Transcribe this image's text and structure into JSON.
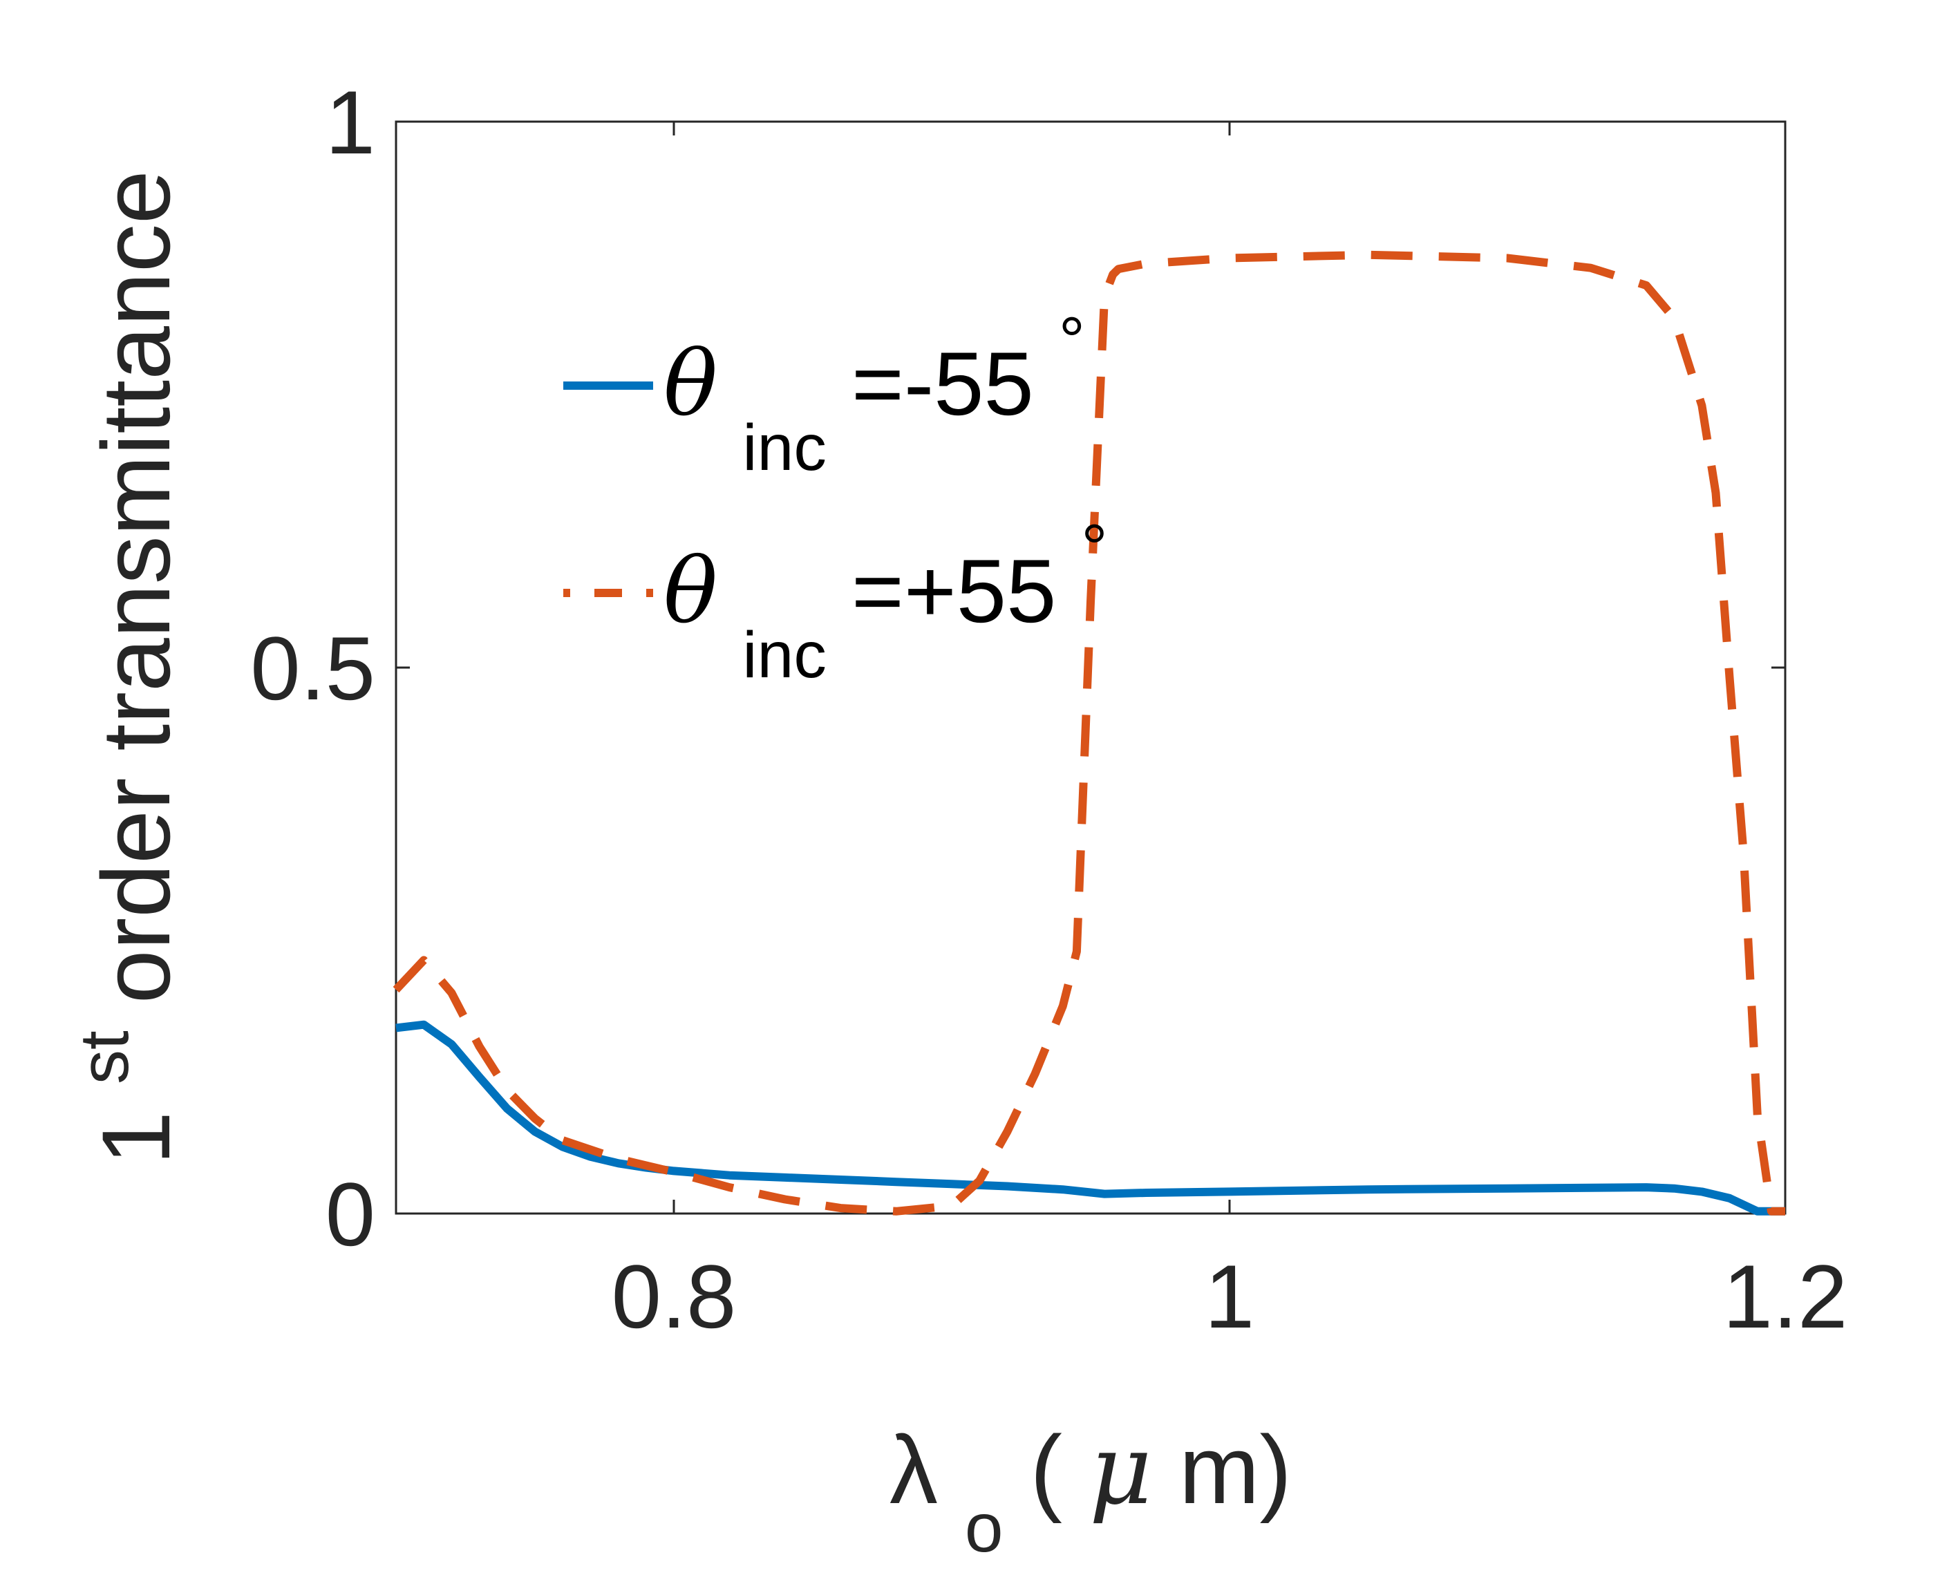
{
  "chart_data": {
    "type": "line",
    "xlabel": {
      "symbol": "λ",
      "sub": "o",
      "unit_open": " (",
      "unit_mu": "μ",
      "unit_rest": "m)"
    },
    "ylabel": {
      "main": "1",
      "sup": "st",
      "rest": " order transmittance"
    },
    "xlim": [
      0.7,
      1.2
    ],
    "ylim": [
      0,
      1
    ],
    "x_ticks": [
      0.8,
      1,
      1.2
    ],
    "x_tick_labels": [
      "0.8",
      "1",
      "1.2"
    ],
    "y_ticks": [
      0,
      0.5,
      1
    ],
    "y_tick_labels": [
      "0",
      "0.5",
      "1"
    ],
    "grid": false,
    "legend_position": "upper-left-inside",
    "series": [
      {
        "legend": {
          "theta": "θ",
          "sub": "inc",
          "rest": "=-55",
          "deg": "°"
        },
        "color": "#0072BD",
        "style": "solid",
        "x": [
          0.7,
          0.71,
          0.72,
          0.73,
          0.74,
          0.75,
          0.76,
          0.77,
          0.78,
          0.79,
          0.8,
          0.82,
          0.84,
          0.86,
          0.88,
          0.9,
          0.92,
          0.94,
          0.955,
          0.97,
          1.0,
          1.05,
          1.1,
          1.15,
          1.16,
          1.17,
          1.18,
          1.19,
          1.2
        ],
        "y": [
          0.17,
          0.173,
          0.155,
          0.125,
          0.096,
          0.075,
          0.061,
          0.052,
          0.046,
          0.042,
          0.039,
          0.035,
          0.033,
          0.031,
          0.029,
          0.027,
          0.025,
          0.022,
          0.018,
          0.019,
          0.02,
          0.022,
          0.023,
          0.024,
          0.023,
          0.02,
          0.014,
          0.002,
          0.002
        ]
      },
      {
        "legend": {
          "theta": "θ",
          "sub": "inc",
          "rest": "=+55",
          "deg": "°"
        },
        "color": "#D95319",
        "style": "dashed",
        "x": [
          0.7,
          0.71,
          0.72,
          0.73,
          0.74,
          0.75,
          0.76,
          0.78,
          0.8,
          0.82,
          0.84,
          0.86,
          0.88,
          0.9,
          0.91,
          0.92,
          0.93,
          0.94,
          0.945,
          0.95,
          0.955,
          0.958,
          0.96,
          0.97,
          1.0,
          1.05,
          1.1,
          1.13,
          1.15,
          1.16,
          1.17,
          1.175,
          1.18,
          1.185,
          1.19,
          1.195,
          1.2
        ],
        "y": [
          0.205,
          0.232,
          0.202,
          0.153,
          0.113,
          0.087,
          0.067,
          0.05,
          0.038,
          0.024,
          0.013,
          0.005,
          0.002,
          0.007,
          0.03,
          0.075,
          0.128,
          0.19,
          0.24,
          0.56,
          0.84,
          0.86,
          0.865,
          0.87,
          0.875,
          0.878,
          0.875,
          0.866,
          0.85,
          0.82,
          0.74,
          0.66,
          0.49,
          0.33,
          0.09,
          0.002,
          0.002
        ]
      }
    ]
  }
}
